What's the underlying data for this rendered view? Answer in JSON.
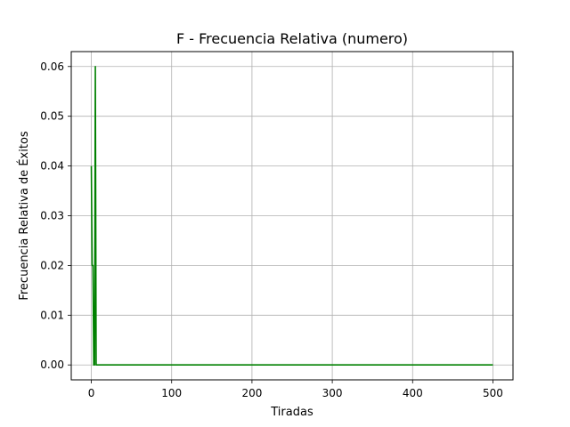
{
  "chart_data": {
    "type": "line",
    "title": "F - Frecuencia Relativa (numero)",
    "xlabel": "Tiradas",
    "ylabel": "Frecuencia Relativa de Éxitos",
    "xlim": [
      -25,
      525
    ],
    "ylim": [
      -0.003,
      0.063
    ],
    "x_ticks": [
      0,
      100,
      200,
      300,
      400,
      500
    ],
    "x_tick_labels": [
      "0",
      "100",
      "200",
      "300",
      "400",
      "500"
    ],
    "y_ticks": [
      0.0,
      0.01,
      0.02,
      0.03,
      0.04,
      0.05,
      0.06
    ],
    "y_tick_labels": [
      "0.00",
      "0.01",
      "0.02",
      "0.03",
      "0.04",
      "0.05",
      "0.06"
    ],
    "grid": true,
    "series": [
      {
        "color": "#008000",
        "x": [
          0,
          1,
          2,
          3,
          4,
          5,
          6,
          7,
          8,
          500
        ],
        "y": [
          0.04,
          0.02,
          0.02,
          0.0,
          0.0,
          0.06,
          0.0,
          0.0,
          0.0,
          0.0
        ]
      }
    ]
  }
}
